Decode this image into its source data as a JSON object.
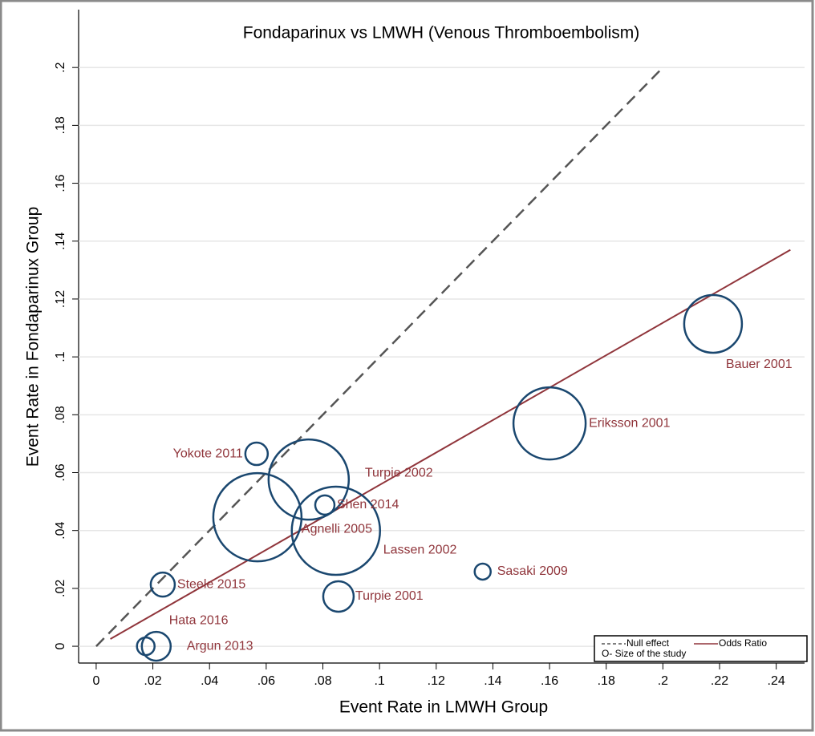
{
  "chart_data": {
    "type": "scatter",
    "title": "Fondaparinux vs LMWH (Venous Thromboembolism)",
    "x_label": "Event Rate in LMWH Group",
    "y_label": "Event Rate in Fondaparinux Group",
    "xlim": [
      -0.0062,
      0.25
    ],
    "ylim": [
      -0.0058,
      0.22
    ],
    "xticks": [
      0,
      {
        "value": 0.02,
        "label": ".02"
      },
      {
        "value": 0.04,
        "label": ".04"
      },
      {
        "value": 0.06,
        "label": ".06"
      },
      {
        "value": 0.08,
        "label": ".08"
      },
      {
        "value": 0.1,
        "label": ".1"
      },
      {
        "value": 0.12,
        "label": ".12"
      },
      {
        "value": 0.14,
        "label": ".14"
      },
      {
        "value": 0.16,
        "label": ".16"
      },
      {
        "value": 0.18,
        "label": ".18"
      },
      {
        "value": 0.2,
        "label": ".2"
      },
      {
        "value": 0.22,
        "label": ".22"
      },
      {
        "value": 0.24,
        "label": ".24"
      }
    ],
    "yticks": [
      0,
      {
        "value": 0.02,
        "label": ".02"
      },
      {
        "value": 0.04,
        "label": ".04"
      },
      {
        "value": 0.06,
        "label": ".06"
      },
      {
        "value": 0.08,
        "label": ".08"
      },
      {
        "value": 0.1,
        "label": ".1"
      },
      {
        "value": 0.12,
        "label": ".12"
      },
      {
        "value": 0.14,
        "label": ".14"
      },
      {
        "value": 0.16,
        "label": ".16"
      },
      {
        "value": 0.18,
        "label": ".18"
      },
      {
        "value": 0.2,
        "label": ".2"
      }
    ],
    "grid": true,
    "points": {
      "color": "#1a476f",
      "label_color": "#90353b",
      "labels": [
        "Bauer 2001",
        "Eriksson 2001",
        "Turpie 2002",
        "Agnelli 2005",
        "Lassen 2002",
        "Shen 2014",
        "Yokote 2011",
        "Steele 2015",
        "Turpie 2001",
        "Sasaki 2009",
        "Hata 2016",
        "Argun 2013"
      ],
      "x": [
        0.2177,
        0.16,
        0.075,
        0.0569,
        0.0846,
        0.0807,
        0.0566,
        0.0235,
        0.0855,
        0.1364,
        0.0175,
        0.0212
      ],
      "y": [
        0.1114,
        0.077,
        0.0576,
        0.0446,
        0.0399,
        0.0488,
        0.0665,
        0.0213,
        0.0172,
        0.0258,
        0,
        0
      ],
      "sizes": [
        36,
        45,
        50,
        55,
        55,
        12,
        14,
        15,
        19,
        10,
        11,
        18
      ]
    },
    "lines": [
      {
        "name": "Null effect",
        "color": "#555555",
        "dashed": true,
        "x": [
          0,
          0.2
        ],
        "y": [
          0,
          0.2
        ]
      },
      {
        "name": "Odds Ratio",
        "color": "#90353b",
        "dashed": false,
        "x": [
          0.005,
          0.245
        ],
        "y": [
          0.0025,
          0.137
        ]
      }
    ],
    "legend_note": "O- Size of the study"
  }
}
